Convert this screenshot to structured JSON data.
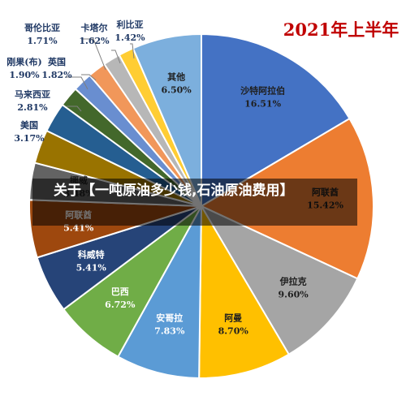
{
  "chart_data": {
    "type": "pie",
    "title": "2021年上半年",
    "slices": [
      {
        "name": "沙特阿拉伯",
        "label": "16.51%",
        "value": 16.51,
        "color": "#4472C4"
      },
      {
        "name": "阿联酋",
        "label": "15.42%",
        "value": 15.42,
        "color": "#ED7D31"
      },
      {
        "name": "伊拉克",
        "label": "9.60%",
        "value": 9.6,
        "color": "#A5A5A5"
      },
      {
        "name": "阿曼",
        "label": "8.70%",
        "value": 8.7,
        "color": "#FFC000"
      },
      {
        "name": "安哥拉",
        "label": "7.83%",
        "value": 7.83,
        "color": "#5B9BD5"
      },
      {
        "name": "巴西",
        "label": "6.72%",
        "value": 6.72,
        "color": "#70AD47"
      },
      {
        "name": "科威特",
        "label": "5.41%",
        "value": 5.41,
        "color": "#264478"
      },
      {
        "name": "阿联酋",
        "label": "5.41%",
        "value": 5.41,
        "color": "#9E480E"
      },
      {
        "name": "挪威",
        "label": "3.48%",
        "value": 3.48,
        "color": "#636363"
      },
      {
        "name": "美国",
        "label": "3.17%",
        "value": 3.17,
        "color": "#997300"
      },
      {
        "name": "马来西亚",
        "label": "2.81%",
        "value": 2.81,
        "color": "#255E91"
      },
      {
        "name": "刚果(布)",
        "label": "1.90%",
        "value": 1.9,
        "color": "#43682B"
      },
      {
        "name": "英国",
        "label": "1.82%",
        "value": 1.82,
        "color": "#698ED0"
      },
      {
        "name": "哥伦比亚",
        "label": "1.71%",
        "value": 1.71,
        "color": "#F1975A"
      },
      {
        "name": "卡塔尔",
        "label": "1.62%",
        "value": 1.62,
        "color": "#B7B7B7"
      },
      {
        "name": "利比亚",
        "label": "1.42%",
        "value": 1.42,
        "color": "#FFCD33"
      },
      {
        "name": "其他",
        "label": "6.50%",
        "value": 6.5,
        "color": "#7CAFDD"
      }
    ]
  },
  "overlay": {
    "banner_text": "关于【一吨原油多少钱,石油原油费用】"
  },
  "colors": {
    "title": "#C00000",
    "inner_label": "#FFFFFF",
    "outer_label": "#1F3864"
  }
}
